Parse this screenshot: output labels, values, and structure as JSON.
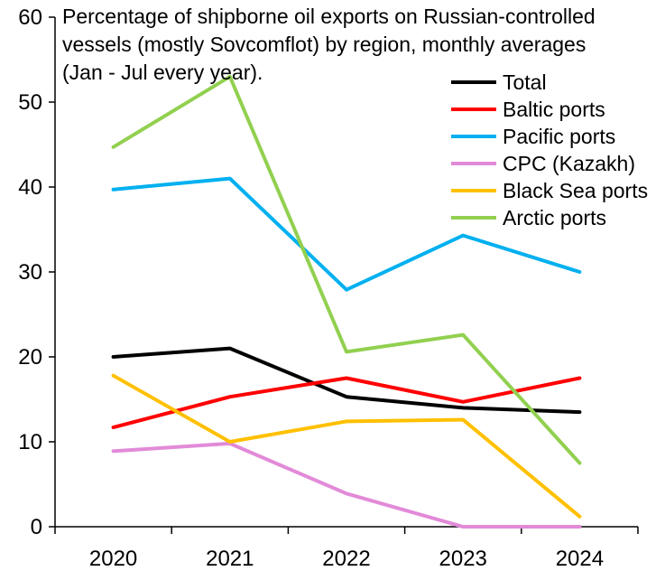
{
  "chart_data": {
    "type": "line",
    "title_lines": [
      "Percentage of shipborne oil exports on Russian-controlled",
      "vessels (mostly Sovcomflot) by region, monthly averages",
      "(Jan - Jul every year)."
    ],
    "categories": [
      "2020",
      "2021",
      "2022",
      "2023",
      "2024"
    ],
    "ylim": [
      0,
      60
    ],
    "yticks": [
      0,
      10,
      20,
      30,
      40,
      50,
      60
    ],
    "grid": false,
    "legend_position": "top-right",
    "series": [
      {
        "name": "Total",
        "color": "#000000",
        "values": [
          20.0,
          21.0,
          15.3,
          14.0,
          13.5
        ]
      },
      {
        "name": "Baltic ports",
        "color": "#ff0000",
        "values": [
          11.7,
          15.3,
          17.5,
          14.7,
          17.5
        ]
      },
      {
        "name": "Pacific ports",
        "color": "#00b0f0",
        "values": [
          39.7,
          41.0,
          27.9,
          34.3,
          30.0
        ]
      },
      {
        "name": "CPC (Kazakh)",
        "color": "#e28ad8",
        "values": [
          8.9,
          9.8,
          3.9,
          0.0,
          0.0
        ]
      },
      {
        "name": "Black Sea ports",
        "color": "#ffc000",
        "values": [
          17.8,
          10.0,
          12.4,
          12.6,
          1.2
        ]
      },
      {
        "name": "Arctic ports",
        "color": "#92d050",
        "values": [
          44.7,
          53.0,
          20.6,
          22.6,
          7.5
        ]
      }
    ]
  }
}
